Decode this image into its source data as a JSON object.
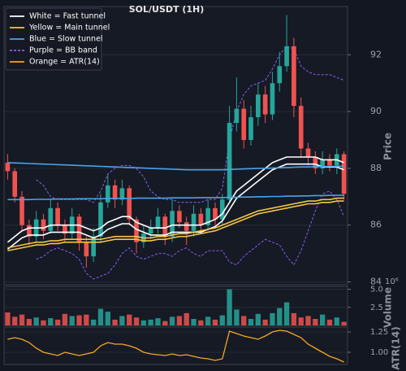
{
  "chart_data": [
    {
      "type": "candlestick",
      "title": "SOL/USDT (1H)",
      "y_label": "Price",
      "up_color": "#26a69a",
      "down_color": "#ef5350",
      "open": [
        88.2,
        87.9,
        87.0,
        86.0,
        85.6,
        86.2,
        85.8,
        86.6,
        86.0,
        85.7,
        86.3,
        85.4,
        84.9,
        85.6,
        86.8,
        87.4,
        86.9,
        87.3,
        86.2,
        85.4,
        85.7,
        85.9,
        86.3,
        85.6,
        86.5,
        86.1,
        85.8,
        86.4,
        86.0,
        86.6,
        86.2,
        86.9,
        89.6,
        90.1,
        89.0,
        89.8,
        90.6,
        89.9,
        91.0,
        91.6,
        92.3,
        90.2,
        88.7,
        88.4,
        88.0,
        88.3,
        88.1,
        88.5
      ],
      "high": [
        88.5,
        88.0,
        87.2,
        86.2,
        86.5,
        86.4,
        86.9,
        86.8,
        86.2,
        86.6,
        86.4,
        85.6,
        85.9,
        87.1,
        87.8,
        87.6,
        87.6,
        87.4,
        86.3,
        86.0,
        86.2,
        86.6,
        86.4,
        86.9,
        86.7,
        86.3,
        86.7,
        86.6,
        86.9,
        86.8,
        87.1,
        90.2,
        91.2,
        90.4,
        90.2,
        91.0,
        90.9,
        91.4,
        92.1,
        93.4,
        92.6,
        90.5,
        88.9,
        88.6,
        88.6,
        88.5,
        88.7,
        88.6
      ],
      "low": [
        87.6,
        86.8,
        85.8,
        85.3,
        85.4,
        85.5,
        85.7,
        85.8,
        85.4,
        85.5,
        85.1,
        84.5,
        84.7,
        85.4,
        86.6,
        86.6,
        86.7,
        86.0,
        85.0,
        85.2,
        85.5,
        85.7,
        85.3,
        85.4,
        85.9,
        85.3,
        85.6,
        85.8,
        85.8,
        86.0,
        86.0,
        86.8,
        89.3,
        88.7,
        88.8,
        89.5,
        89.6,
        89.7,
        90.7,
        91.4,
        89.8,
        88.4,
        88.1,
        87.8,
        87.8,
        87.9,
        87.8,
        86.9
      ],
      "close": [
        87.9,
        87.0,
        86.0,
        85.6,
        86.2,
        85.8,
        86.6,
        86.0,
        85.7,
        86.3,
        85.4,
        84.9,
        85.6,
        86.8,
        87.4,
        86.9,
        87.3,
        86.2,
        85.4,
        85.7,
        85.9,
        86.3,
        85.6,
        86.5,
        86.1,
        85.8,
        86.4,
        86.0,
        86.6,
        86.2,
        86.9,
        89.6,
        90.1,
        89.0,
        89.8,
        90.6,
        89.9,
        91.0,
        91.6,
        92.3,
        90.2,
        88.7,
        88.4,
        88.0,
        88.3,
        88.1,
        88.5,
        87.1
      ],
      "series": [
        {
          "name": "White = Fast tunnel",
          "color": "#ffffff",
          "dashed": false,
          "lines": [
            [
              85.4,
              85.6,
              85.8,
              85.9,
              85.9,
              85.9,
              86.0,
              86.0,
              86.0,
              86.0,
              86.0,
              85.9,
              85.8,
              85.9,
              86.1,
              86.2,
              86.3,
              86.3,
              86.1,
              86.0,
              85.9,
              85.9,
              85.9,
              86.0,
              86.0,
              86.0,
              86.0,
              86.0,
              86.1,
              86.2,
              86.4,
              86.8,
              87.2,
              87.4,
              87.6,
              87.8,
              88.0,
              88.2,
              88.3,
              88.4,
              88.4,
              88.4,
              88.4,
              88.4,
              88.3,
              88.3,
              88.3,
              88.2
            ],
            [
              85.15,
              85.35,
              85.55,
              85.65,
              85.65,
              85.65,
              85.75,
              85.75,
              85.75,
              85.75,
              85.75,
              85.65,
              85.55,
              85.65,
              85.85,
              85.95,
              86.05,
              86.05,
              85.85,
              85.75,
              85.65,
              85.65,
              85.65,
              85.75,
              85.75,
              85.75,
              85.75,
              85.75,
              85.85,
              85.95,
              86.15,
              86.55,
              86.95,
              87.15,
              87.35,
              87.55,
              87.75,
              87.95,
              88.05,
              88.15,
              88.15,
              88.15,
              88.15,
              88.15,
              88.05,
              88.05,
              88.05,
              87.95
            ]
          ]
        },
        {
          "name": "Yellow = Main tunnel",
          "color": "#f5c542",
          "dashed": false,
          "lines": [
            [
              85.2,
              85.25,
              85.3,
              85.35,
              85.4,
              85.4,
              85.45,
              85.45,
              85.5,
              85.5,
              85.5,
              85.5,
              85.5,
              85.5,
              85.55,
              85.6,
              85.6,
              85.6,
              85.6,
              85.55,
              85.55,
              85.6,
              85.6,
              85.65,
              85.7,
              85.7,
              85.75,
              85.8,
              85.85,
              85.9,
              86.0,
              86.1,
              86.2,
              86.3,
              86.4,
              86.5,
              86.55,
              86.6,
              86.65,
              86.7,
              86.75,
              86.8,
              86.85,
              86.85,
              86.9,
              86.9,
              86.95,
              86.95
            ],
            [
              85.1,
              85.15,
              85.2,
              85.25,
              85.3,
              85.3,
              85.35,
              85.35,
              85.4,
              85.4,
              85.4,
              85.4,
              85.4,
              85.4,
              85.45,
              85.5,
              85.5,
              85.5,
              85.5,
              85.45,
              85.45,
              85.5,
              85.5,
              85.55,
              85.6,
              85.6,
              85.65,
              85.7,
              85.75,
              85.8,
              85.9,
              86.0,
              86.1,
              86.2,
              86.3,
              86.4,
              86.45,
              86.5,
              86.55,
              86.6,
              86.65,
              86.7,
              86.75,
              86.75,
              86.8,
              86.8,
              86.85,
              86.85
            ]
          ]
        },
        {
          "name": "Blue = Slow tunnel",
          "color": "#4aa3e8",
          "dashed": false,
          "lines": [
            [
              88.2,
              88.19,
              88.18,
              88.17,
              88.16,
              88.15,
              88.14,
              88.13,
              88.12,
              88.11,
              88.1,
              88.09,
              88.08,
              88.07,
              88.06,
              88.05,
              88.04,
              88.03,
              88.02,
              88.01,
              88.0,
              87.99,
              87.98,
              87.97,
              87.96,
              87.95,
              87.95,
              87.95,
              87.95,
              87.95,
              87.95,
              87.96,
              87.97,
              87.98,
              87.99,
              88.0,
              88.0,
              88.01,
              88.02,
              88.03,
              88.04,
              88.05,
              88.05,
              88.06,
              88.06,
              88.07,
              88.07,
              88.08
            ],
            [
              86.9,
              86.9,
              86.9,
              86.9,
              86.91,
              86.91,
              86.91,
              86.92,
              86.92,
              86.92,
              86.93,
              86.93,
              86.93,
              86.93,
              86.94,
              86.94,
              86.94,
              86.94,
              86.95,
              86.95,
              86.95,
              86.95,
              86.95,
              86.96,
              86.96,
              86.96,
              86.96,
              86.97,
              86.97,
              86.97,
              86.97,
              86.98,
              86.98,
              86.99,
              86.99,
              87.0,
              87.0,
              87.01,
              87.01,
              87.02,
              87.02,
              87.03,
              87.03,
              87.04,
              87.04,
              87.05,
              87.05,
              87.05
            ]
          ]
        },
        {
          "name": "Purple = BB band",
          "color": "#8a5cf5",
          "dashed": true,
          "lines": [
            [
              null,
              null,
              null,
              null,
              87.6,
              87.4,
              87.0,
              86.9,
              86.9,
              86.9,
              86.9,
              86.9,
              86.8,
              87.2,
              87.8,
              88.0,
              88.1,
              88.1,
              88.0,
              87.7,
              87.2,
              87.0,
              86.9,
              86.9,
              86.8,
              86.8,
              86.8,
              86.8,
              86.9,
              86.9,
              87.3,
              89.0,
              90.0,
              90.6,
              90.9,
              91.0,
              91.1,
              91.5,
              92.0,
              92.3,
              92.2,
              91.6,
              91.4,
              91.3,
              91.3,
              91.3,
              91.2,
              91.1
            ],
            [
              null,
              null,
              null,
              null,
              84.8,
              84.9,
              85.1,
              85.2,
              85.1,
              85.0,
              84.8,
              84.3,
              84.1,
              84.2,
              84.3,
              84.6,
              85.0,
              85.2,
              84.9,
              84.8,
              84.9,
              85.0,
              85.0,
              84.9,
              85.1,
              85.2,
              85.0,
              84.9,
              85.1,
              85.1,
              85.1,
              84.7,
              84.6,
              84.9,
              85.1,
              85.3,
              85.5,
              85.4,
              85.3,
              84.9,
              84.6,
              85.1,
              85.8,
              86.5,
              87.1,
              87.2,
              86.9,
              86.3
            ]
          ]
        }
      ],
      "legend": "upper left",
      "grid": true,
      "ylim": [
        83.9,
        93.7
      ],
      "yticks": [
        84,
        86,
        88,
        90,
        92
      ]
    },
    {
      "type": "bar",
      "y_label": "Volume",
      "scale_label": "10⁶",
      "values": [
        1.8,
        1.2,
        1.5,
        0.9,
        1.1,
        0.7,
        1.0,
        0.8,
        1.6,
        1.3,
        1.4,
        1.5,
        0.8,
        2.3,
        1.9,
        0.8,
        1.3,
        1.5,
        1.1,
        0.7,
        0.8,
        1.0,
        0.6,
        1.2,
        1.3,
        1.7,
        0.9,
        0.7,
        1.2,
        0.8,
        1.4,
        5.0,
        2.2,
        1.3,
        0.9,
        1.6,
        0.8,
        1.7,
        2.4,
        3.2,
        1.7,
        1.1,
        1.3,
        0.9,
        1.5,
        0.8,
        1.1,
        0.5
      ],
      "grid": true,
      "ylim": [
        0,
        5.4
      ],
      "yticks": [
        {
          "value": 2.5,
          "label": "2.5"
        },
        {
          "value": 5,
          "label": "5.0"
        }
      ]
    },
    {
      "type": "line",
      "y_label": "ATR(14)",
      "series": [
        {
          "name": "Orange = ATR(14)",
          "color": "#f5a623",
          "values": [
            1.16,
            1.18,
            1.16,
            1.12,
            1.05,
            1.0,
            0.98,
            0.96,
            1.0,
            0.98,
            0.96,
            0.98,
            1.0,
            1.08,
            1.12,
            1.1,
            1.1,
            1.08,
            1.05,
            1.0,
            0.98,
            0.97,
            0.96,
            0.98,
            0.96,
            0.97,
            0.95,
            0.93,
            0.92,
            0.9,
            0.92,
            1.26,
            1.23,
            1.2,
            1.18,
            1.16,
            1.2,
            1.25,
            1.27,
            1.26,
            1.22,
            1.18,
            1.1,
            1.05,
            1.0,
            0.95,
            0.92,
            0.88
          ]
        }
      ],
      "grid": true,
      "ylim": [
        0.85,
        1.31
      ],
      "yticks": [
        {
          "value": 1,
          "label": "1.00"
        },
        1.25
      ]
    }
  ]
}
